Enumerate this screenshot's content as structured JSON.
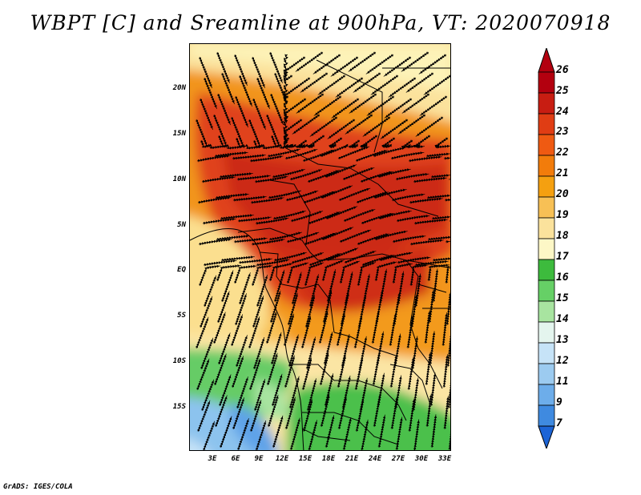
{
  "title": "WBPT [C] and Sreamline at 900hPa, VT: 2020070918",
  "footer": "GrADS: IGES/COLA",
  "map": {
    "lat_labels": [
      "20N",
      "15N",
      "10N",
      "5N",
      "EQ",
      "5S",
      "10S",
      "15S"
    ],
    "lon_labels": [
      "3E",
      "6E",
      "9E",
      "12E",
      "15E",
      "18E",
      "21E",
      "24E",
      "27E",
      "30E",
      "33E"
    ],
    "lat_range": [
      -20,
      24
    ],
    "lon_range": [
      0,
      34
    ]
  },
  "colorbar": {
    "labels": [
      "26",
      "25",
      "24",
      "23",
      "22",
      "21",
      "20",
      "19",
      "18",
      "17",
      "16",
      "15",
      "14",
      "13",
      "12",
      "11",
      "9",
      "7"
    ],
    "colors": [
      "#b3000f",
      "#c81d12",
      "#e03d14",
      "#ef5a12",
      "#f27c0b",
      "#f5a010",
      "#f7c055",
      "#fbe29c",
      "#fdf7c6",
      "#3dbb3d",
      "#66d066",
      "#a8e4a0",
      "#e4f5ee",
      "#c6e3f7",
      "#9ccbf0",
      "#6dadea",
      "#3f8ae0",
      "#1c64d6"
    ]
  },
  "colors": {
    "shade_deep": "#c82812",
    "shade_orange": "#f08a14",
    "shade_light": "#fbe29c",
    "shade_green": "#5ac85a",
    "shade_blue": "#8cc3ee"
  }
}
